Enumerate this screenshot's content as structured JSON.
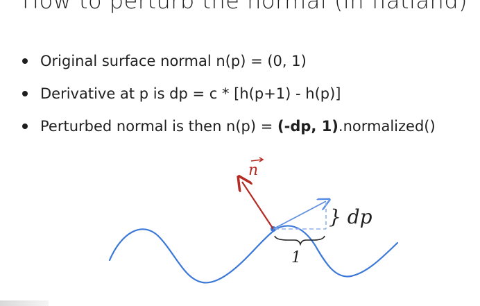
{
  "slide": {
    "title": "How to perturb the normal (in flatland)",
    "bullets": [
      {
        "text": "Original surface normal n(p) = (0, 1)"
      },
      {
        "text": "Derivative at p is dp = c * [h(p+1) - h(p)]"
      },
      {
        "pre": "Perturbed normal is then n(p) = ",
        "bold": "(-dp, 1)",
        "post": ".normalized()"
      }
    ]
  },
  "diagram": {
    "normal_label": "n",
    "dp_label": "} dp",
    "unit_label": "1"
  },
  "colors": {
    "curve": "#3b78d8",
    "normal_arrow": "#b52a22",
    "tangent_arrow": "#5f8fe0",
    "dashed": "#8fb0ea",
    "text": "#1f1f1f"
  }
}
